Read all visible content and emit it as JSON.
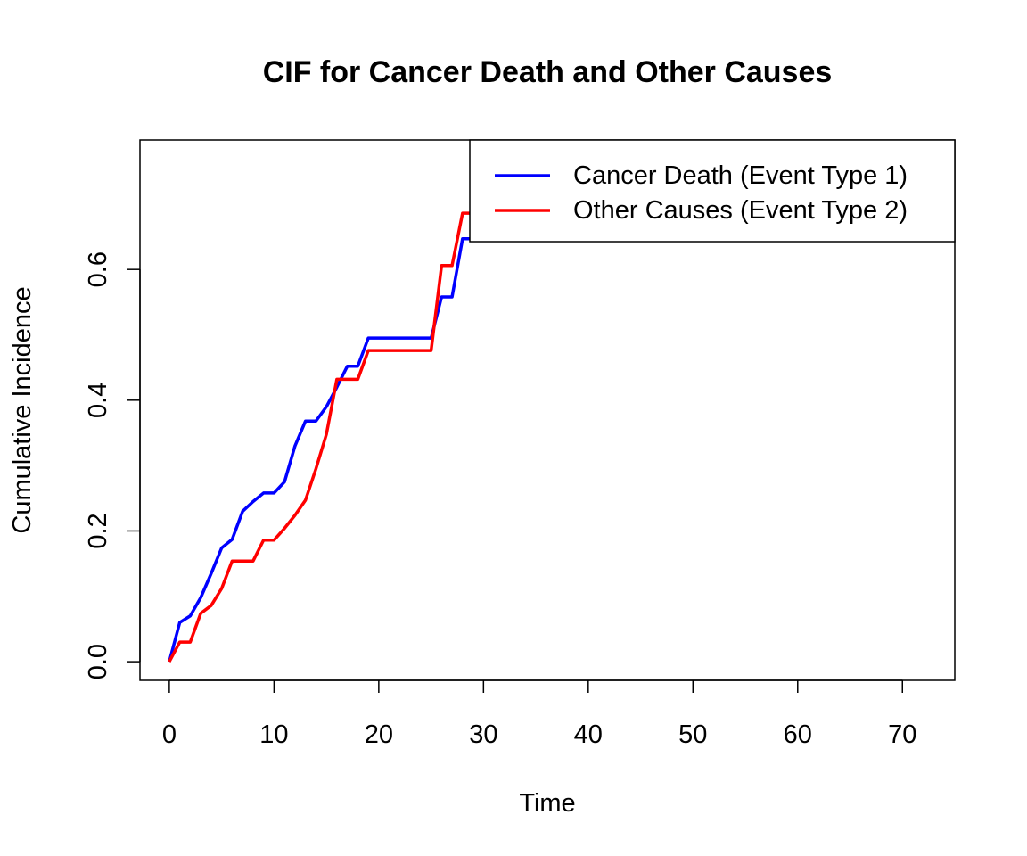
{
  "chart_data": {
    "type": "line",
    "title": "CIF for Cancer Death and Other Causes",
    "xlabel": "Time",
    "ylabel": "Cumulative Incidence",
    "xlim": [
      -2.8,
      75
    ],
    "ylim": [
      -0.0285,
      0.798
    ],
    "xticks": [
      0,
      10,
      20,
      30,
      40,
      50,
      60,
      70
    ],
    "yticks": [
      0.0,
      0.2,
      0.4,
      0.6
    ],
    "ytick_labels": [
      "0.0",
      "0.2",
      "0.4",
      "0.6"
    ],
    "grid": false,
    "legend_position": "top-right",
    "series": [
      {
        "name": "Cancer Death (Event Type 1)",
        "color": "#0000FF",
        "x": [
          0,
          1,
          2,
          3,
          4,
          5,
          6,
          7,
          8,
          9,
          10,
          11,
          12,
          13,
          14,
          15,
          16,
          17,
          18,
          19,
          25,
          26,
          27,
          28,
          29
        ],
        "y": [
          0.0,
          0.06,
          0.07,
          0.098,
          0.135,
          0.174,
          0.187,
          0.23,
          0.245,
          0.258,
          0.258,
          0.275,
          0.33,
          0.368,
          0.368,
          0.39,
          0.42,
          0.452,
          0.452,
          0.495,
          0.495,
          0.558,
          0.558,
          0.647,
          0.647
        ]
      },
      {
        "name": "Other Causes (Event Type 2)",
        "color": "#FF0000",
        "x": [
          0,
          1,
          2,
          3,
          4,
          5,
          6,
          7,
          8,
          9,
          10,
          11,
          12,
          13,
          14,
          15,
          16,
          17,
          18,
          19,
          25,
          26,
          27,
          28,
          29
        ],
        "y": [
          0.0,
          0.03,
          0.03,
          0.074,
          0.086,
          0.112,
          0.154,
          0.154,
          0.154,
          0.186,
          0.186,
          0.204,
          0.224,
          0.247,
          0.295,
          0.348,
          0.432,
          0.432,
          0.432,
          0.476,
          0.476,
          0.606,
          0.606,
          0.686,
          0.686
        ]
      }
    ]
  }
}
